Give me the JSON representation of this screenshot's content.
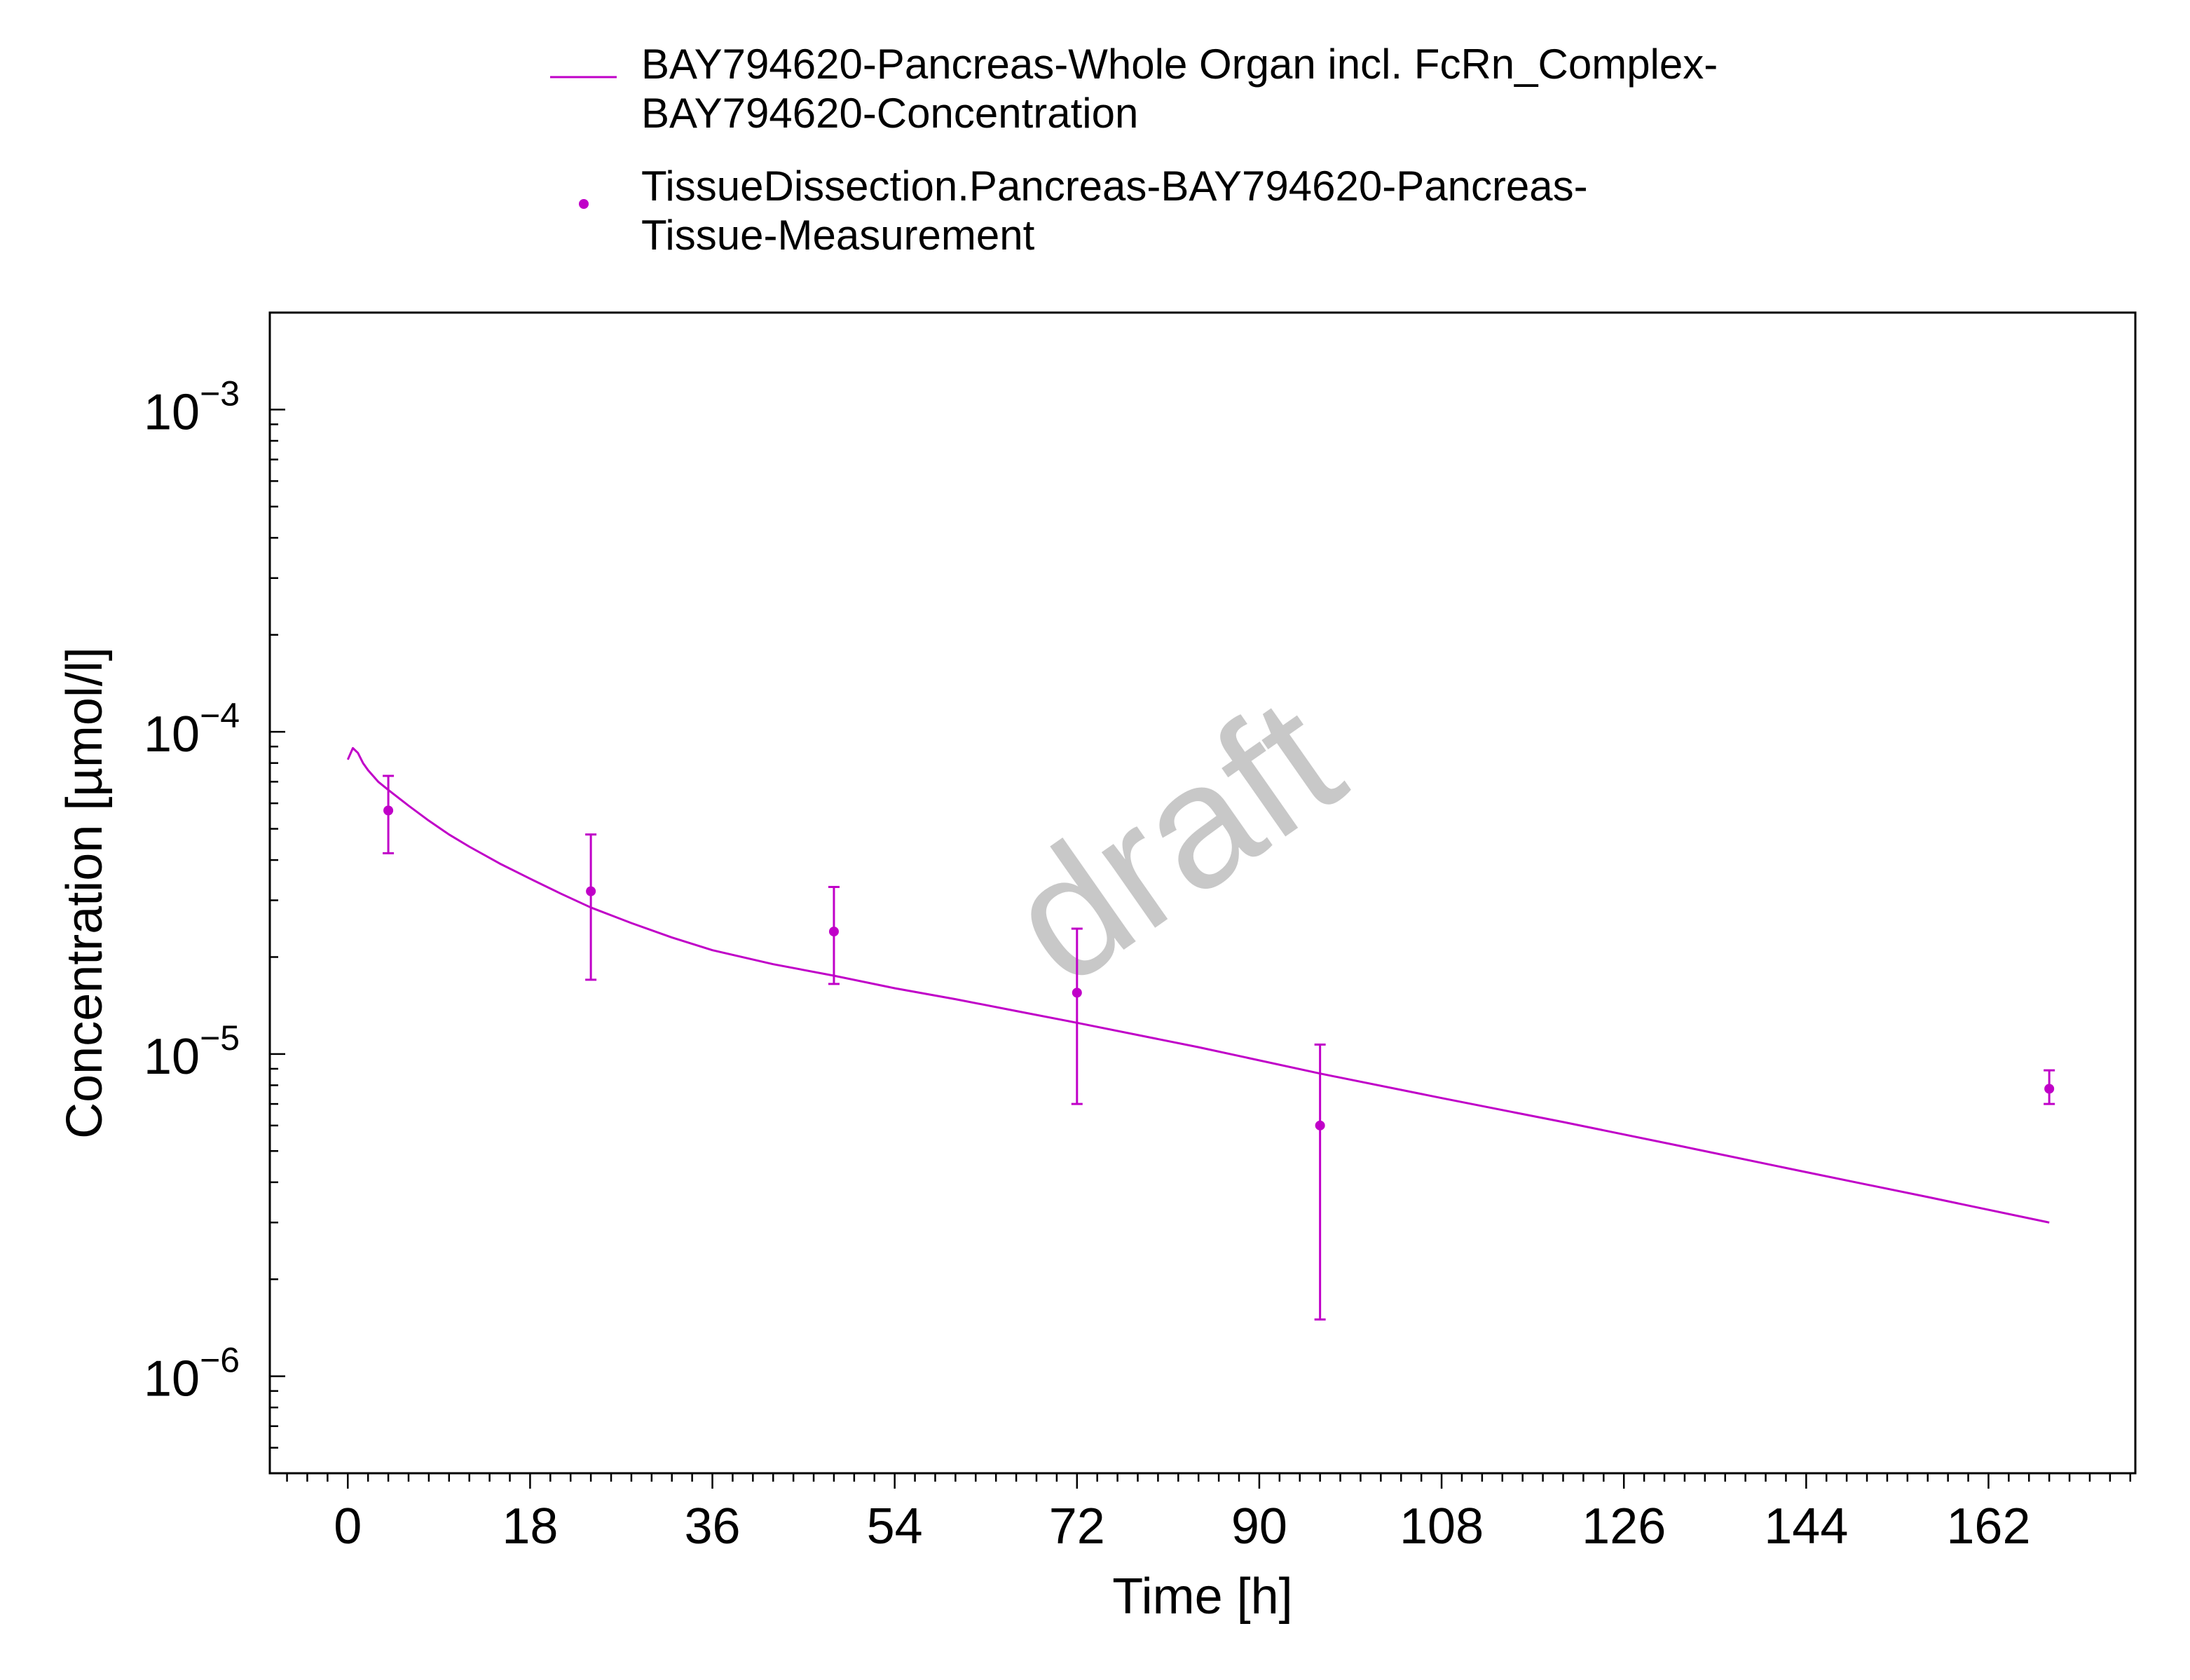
{
  "chart_data": {
    "type": "line",
    "title": "",
    "xlabel": "Time [h]",
    "ylabel": "Concentration [µmol/l]",
    "xlim": [
      -7.7,
      176.5
    ],
    "ylim": [
      5e-07,
      0.002
    ],
    "y_scale": "log",
    "x_ticks": [
      0,
      18,
      36,
      54,
      72,
      90,
      108,
      126,
      144,
      162
    ],
    "x_tick_labels": [
      "0",
      "18",
      "36",
      "54",
      "72",
      "90",
      "108",
      "126",
      "144",
      "162"
    ],
    "y_ticks": [
      1e-06,
      1e-05,
      0.0001,
      0.001
    ],
    "y_tick_labels": [
      {
        "base": "10",
        "exp": "−6"
      },
      {
        "base": "10",
        "exp": "−5"
      },
      {
        "base": "10",
        "exp": "−4"
      },
      {
        "base": "10",
        "exp": "−3"
      }
    ],
    "watermark": "draft",
    "legend_position": "top",
    "series": [
      {
        "name": "BAY794620-Pancreas-Whole Organ incl. FcRn_Complex-BAY794620-Concentration",
        "legend_lines": [
          "BAY794620-Pancreas-Whole Organ incl. FcRn_Complex-",
          "BAY794620-Concentration"
        ],
        "kind": "line",
        "color": "#c000c8",
        "x": [
          0,
          0.5,
          1,
          1.5,
          2,
          3,
          4,
          6,
          8,
          10,
          12,
          15,
          18,
          21,
          24,
          28,
          32,
          36,
          42,
          48,
          54,
          60,
          66,
          72,
          84,
          96,
          108,
          120,
          132,
          144,
          156,
          168
        ],
        "y": [
          8.2e-05,
          8.9e-05,
          8.6e-05,
          8e-05,
          7.6e-05,
          7e-05,
          6.6e-05,
          5.9e-05,
          5.3e-05,
          4.8e-05,
          4.4e-05,
          3.9e-05,
          3.5e-05,
          3.15e-05,
          2.85e-05,
          2.55e-05,
          2.3e-05,
          2.1e-05,
          1.9e-05,
          1.75e-05,
          1.6e-05,
          1.48e-05,
          1.36e-05,
          1.25e-05,
          1.05e-05,
          8.7e-06,
          7.3e-06,
          6.15e-06,
          5.15e-06,
          4.3e-06,
          3.6e-06,
          3e-06
        ]
      },
      {
        "name": "TissueDissection.Pancreas-BAY794620-Pancreas-Tissue-Measurement",
        "legend_lines": [
          "TissueDissection.Pancreas-BAY794620-Pancreas-",
          "Tissue-Measurement"
        ],
        "kind": "scatter",
        "color": "#c000c8",
        "x": [
          4,
          24,
          48,
          72,
          96,
          168
        ],
        "y": [
          5.7e-05,
          3.2e-05,
          2.4e-05,
          1.55e-05,
          6e-06,
          7.8e-06
        ],
        "y_lower": [
          4.2e-05,
          1.7e-05,
          1.65e-05,
          7e-06,
          1.5e-06,
          7e-06
        ],
        "y_upper": [
          7.3e-05,
          4.8e-05,
          3.3e-05,
          2.45e-05,
          1.07e-05,
          8.9e-06
        ]
      }
    ]
  }
}
